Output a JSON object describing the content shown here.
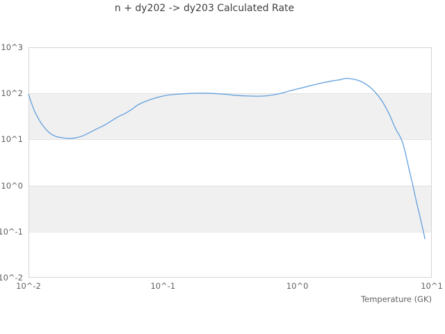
{
  "colors": {
    "background": "#ffffff",
    "band": "#f0f0f0",
    "gridline": "#e2e2e2",
    "plot_border": "#d4d4d4",
    "tick_text": "#616161",
    "title_text": "#3f3f3f",
    "line": "#61a0dd"
  },
  "chart_data": {
    "type": "line",
    "title": "n + dy202 -> dy203 Calculated Rate",
    "xlabel": "Temperature (GK)",
    "ylabel": "",
    "x_scale": "log",
    "y_scale": "log",
    "xlim": [
      0.01,
      10
    ],
    "ylim": [
      0.01,
      1000
    ],
    "grid": "horizontal decade gridlines with alternating gray bands",
    "legend_position": "none",
    "x_ticks": [
      {
        "label": "10^-2",
        "value": 0.01
      },
      {
        "label": "10^-1",
        "value": 0.1
      },
      {
        "label": "10^0",
        "value": 1
      },
      {
        "label": "10^1",
        "value": 10
      }
    ],
    "y_ticks": [
      {
        "label": "10^3",
        "value": 1000
      },
      {
        "label": "10^2",
        "value": 100
      },
      {
        "label": "10^1",
        "value": 10
      },
      {
        "label": "10^0",
        "value": 1
      },
      {
        "label": "10^-1",
        "value": 0.1
      },
      {
        "label": "10^-2",
        "value": 0.01
      }
    ],
    "series": [
      {
        "name": "n + dy202 -> dy203 calculated rate",
        "color": "#61a0dd",
        "points": [
          [
            0.01,
            95
          ],
          [
            0.0111,
            41
          ],
          [
            0.0125,
            22
          ],
          [
            0.0141,
            14.5
          ],
          [
            0.0159,
            11.7
          ],
          [
            0.0179,
            10.9
          ],
          [
            0.0202,
            10.5
          ],
          [
            0.0227,
            10.9
          ],
          [
            0.0256,
            12.1
          ],
          [
            0.0289,
            14.4
          ],
          [
            0.0324,
            17.1
          ],
          [
            0.0366,
            20.3
          ],
          [
            0.0412,
            25.1
          ],
          [
            0.0463,
            30.9
          ],
          [
            0.0522,
            36.7
          ],
          [
            0.0588,
            45.2
          ],
          [
            0.0662,
            57.7
          ],
          [
            0.0839,
            76.2
          ],
          [
            0.1065,
            90.6
          ],
          [
            0.135,
            97.1
          ],
          [
            0.171,
            100.5
          ],
          [
            0.217,
            100.5
          ],
          [
            0.275,
            97.1
          ],
          [
            0.35,
            90.6
          ],
          [
            0.444,
            87.6
          ],
          [
            0.563,
            87.6
          ],
          [
            0.714,
            97
          ],
          [
            0.906,
            116
          ],
          [
            1.15,
            138
          ],
          [
            1.46,
            164
          ],
          [
            1.85,
            188
          ],
          [
            2.08,
            198
          ],
          [
            2.3,
            212
          ],
          [
            2.64,
            202
          ],
          [
            2.97,
            182
          ],
          [
            3.35,
            148
          ],
          [
            3.77,
            108
          ],
          [
            4.25,
            69
          ],
          [
            4.79,
            37
          ],
          [
            5.38,
            17.1
          ],
          [
            6.07,
            8.5
          ],
          [
            6.84,
            2.0
          ],
          [
            7.24,
            0.99
          ],
          [
            7.69,
            0.44
          ],
          [
            8.17,
            0.21
          ],
          [
            8.9,
            0.07
          ]
        ]
      }
    ]
  }
}
